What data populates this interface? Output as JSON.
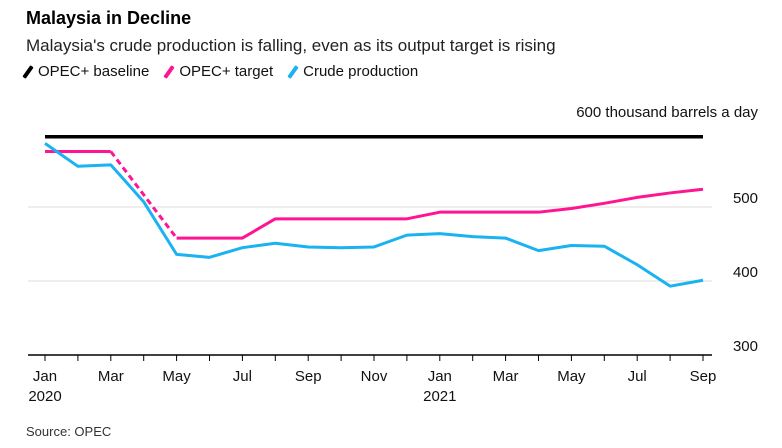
{
  "title": "Malaysia in Decline",
  "subtitle": "Malaysia's crude production is falling, even as its output target is rising",
  "source": "Source: OPEC",
  "chart_data": {
    "type": "line",
    "title": "Malaysia in Decline",
    "subtitle": "Malaysia's crude production is falling, even as its output target is rising",
    "y_unit_label": "600 thousand barrels a day",
    "ylim": [
      300,
      600
    ],
    "yticks": [
      300,
      400,
      500,
      600
    ],
    "grid": true,
    "legend_position": "top-left",
    "x": [
      "2020-01",
      "2020-02",
      "2020-03",
      "2020-04",
      "2020-05",
      "2020-06",
      "2020-07",
      "2020-08",
      "2020-09",
      "2020-10",
      "2020-11",
      "2020-12",
      "2021-01",
      "2021-02",
      "2021-03",
      "2021-04",
      "2021-05",
      "2021-06",
      "2021-07",
      "2021-08",
      "2021-09"
    ],
    "xtick_labels": [
      {
        "month": "Jan",
        "year": "2020"
      },
      {
        "month": "Mar",
        "year": ""
      },
      {
        "month": "May",
        "year": ""
      },
      {
        "month": "Jul",
        "year": ""
      },
      {
        "month": "Sep",
        "year": ""
      },
      {
        "month": "Nov",
        "year": ""
      },
      {
        "month": "Jan",
        "year": "2021"
      },
      {
        "month": "Mar",
        "year": ""
      },
      {
        "month": "May",
        "year": ""
      },
      {
        "month": "Jul",
        "year": ""
      },
      {
        "month": "Sep",
        "year": ""
      }
    ],
    "series": [
      {
        "name": "OPEC+ baseline",
        "color": "#000000",
        "values": [
          595,
          595,
          595,
          595,
          595,
          595,
          595,
          595,
          595,
          595,
          595,
          595,
          595,
          595,
          595,
          595,
          595,
          595,
          595,
          595,
          595
        ]
      },
      {
        "name": "OPEC+ target",
        "color": "#ff1493",
        "dashed_segment": [
          "2020-03",
          "2020-05"
        ],
        "values": [
          575,
          575,
          575,
          null,
          458,
          458,
          458,
          484,
          484,
          484,
          484,
          484,
          493,
          493,
          493,
          493,
          498,
          505,
          513,
          519,
          524
        ]
      },
      {
        "name": "Crude production",
        "color": "#1ab2f0",
        "values": [
          586,
          555,
          557,
          507,
          436,
          432,
          445,
          451,
          446,
          445,
          446,
          462,
          464,
          460,
          458,
          441,
          448,
          447,
          422,
          393,
          401
        ]
      }
    ]
  }
}
